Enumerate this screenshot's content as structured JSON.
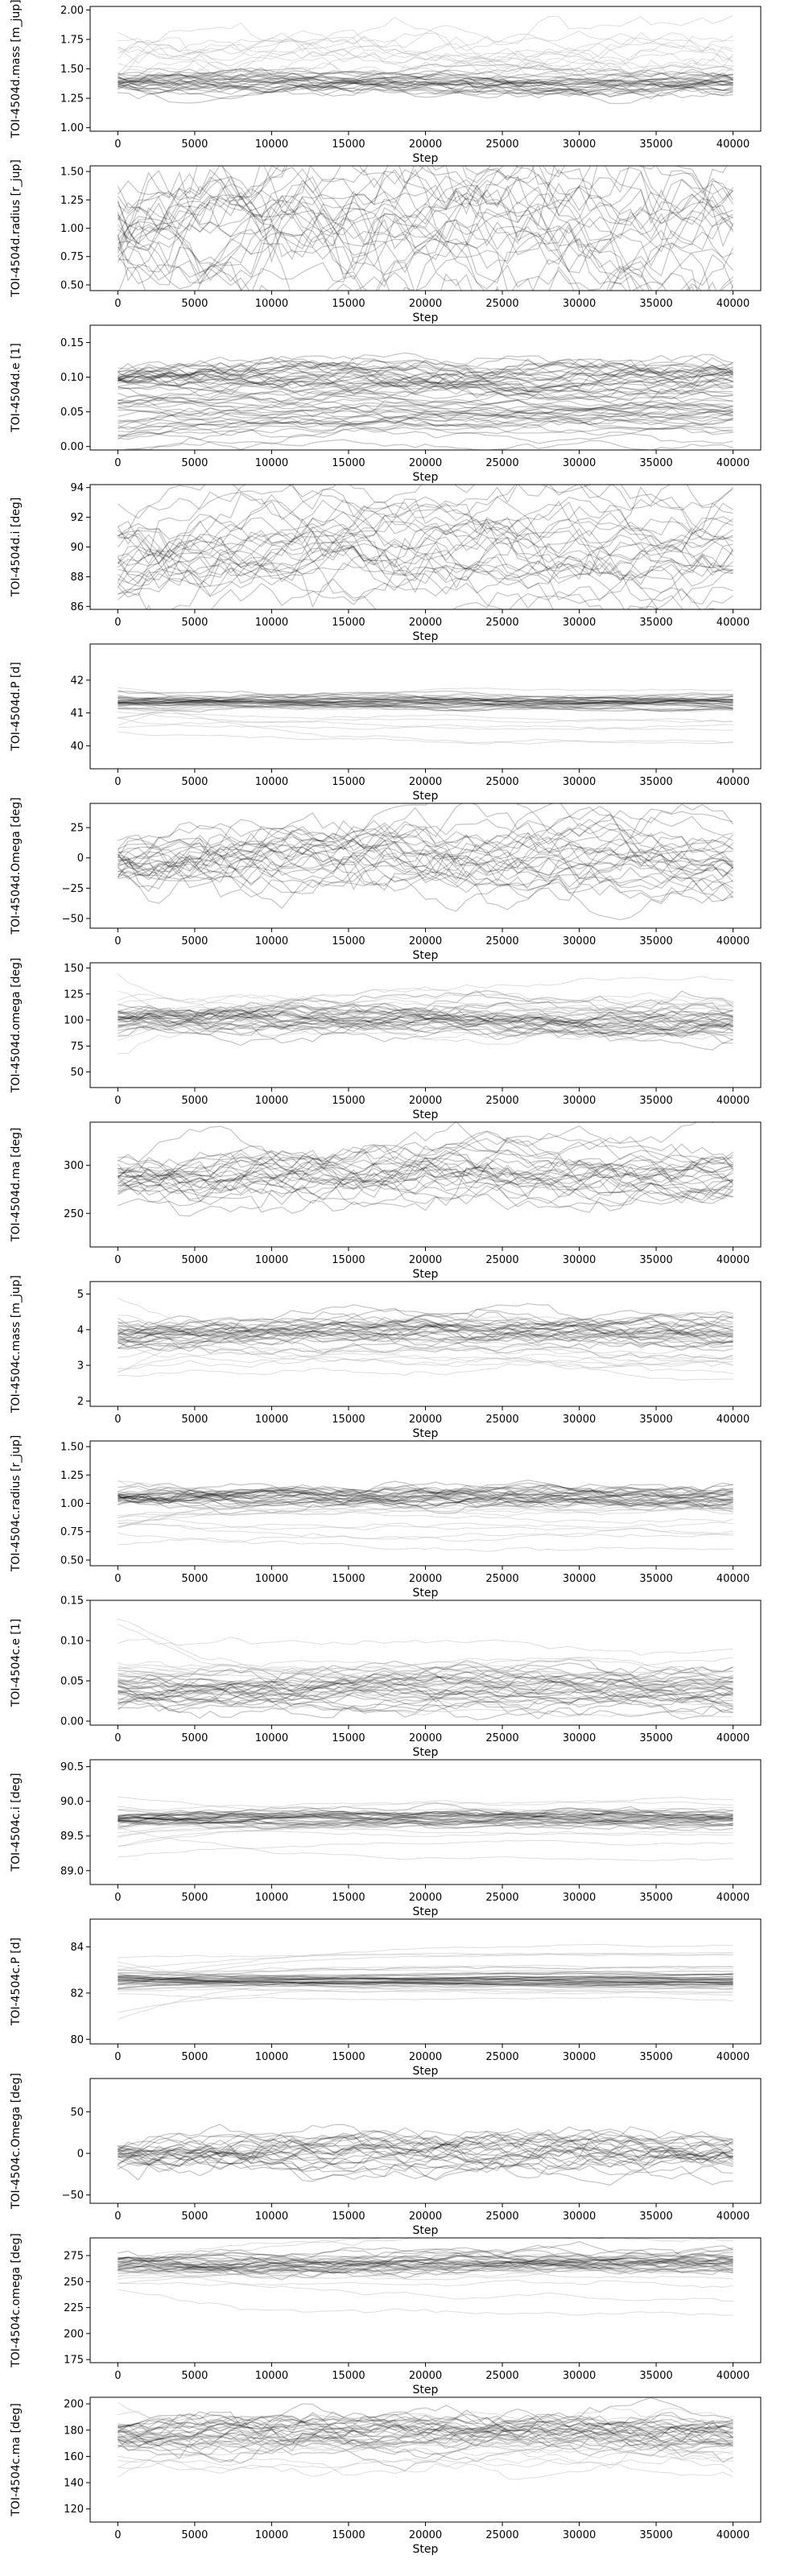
{
  "chart_data": [
    {
      "type": "line",
      "ylabel": "TOI-4504d.mass [m_jup]",
      "xlabel": "Step",
      "yticks": [
        1.0,
        1.25,
        1.5,
        1.75,
        2.0
      ],
      "ytick_labels": [
        "1.00",
        "1.25",
        "1.50",
        "1.75",
        "2.00"
      ],
      "ylim": [
        0.97,
        2.03
      ],
      "xlim": [
        -1800,
        41800
      ],
      "series": [
        {
          "center": 1.38,
          "spread": 0.06,
          "jitter": 0.02
        },
        {
          "center": 1.6,
          "spread": 0.25,
          "jitter": 0.04,
          "faint": true
        }
      ]
    },
    {
      "type": "line",
      "ylabel": "TOI-4504d.radius [r_jup]",
      "xlabel": "Step",
      "yticks": [
        0.5,
        0.75,
        1.0,
        1.25,
        1.5
      ],
      "ytick_labels": [
        "0.50",
        "0.75",
        "1.00",
        "1.25",
        "1.50"
      ],
      "ylim": [
        0.45,
        1.55
      ],
      "xlim": [
        -1800,
        41800
      ],
      "series": [
        {
          "center": 1.0,
          "spread": 0.45,
          "jitter": 0.12
        }
      ]
    },
    {
      "type": "line",
      "ylabel": "TOI-4504d.e [1]",
      "xlabel": "Step",
      "yticks": [
        0.0,
        0.05,
        0.1,
        0.15
      ],
      "ytick_labels": [
        "0.00",
        "0.05",
        "0.10",
        "0.15"
      ],
      "ylim": [
        -0.005,
        0.175
      ],
      "xlim": [
        -1800,
        41800
      ],
      "series": [
        {
          "center": 0.1,
          "spread": 0.01,
          "jitter": 0.005
        },
        {
          "center": 0.05,
          "spread": 0.04,
          "jitter": 0.003
        }
      ]
    },
    {
      "type": "line",
      "ylabel": "TOI-4504d.i [deg]",
      "xlabel": "Step",
      "yticks": [
        86,
        88,
        90,
        92,
        94
      ],
      "ytick_labels": [
        "86",
        "88",
        "90",
        "92",
        "94"
      ],
      "ylim": [
        85.8,
        94.2
      ],
      "xlim": [
        -1800,
        41800
      ],
      "series": [
        {
          "center": 89.5,
          "spread": 3.5,
          "jitter": 0.6
        }
      ]
    },
    {
      "type": "line",
      "ylabel": "TOI-4504d.P [d]",
      "xlabel": "Step",
      "yticks": [
        40,
        41,
        42
      ],
      "ytick_labels": [
        "40",
        "41",
        "42"
      ],
      "ylim": [
        39.3,
        43.1
      ],
      "xlim": [
        -1800,
        41800
      ],
      "series": [
        {
          "center": 41.3,
          "spread": 0.2,
          "jitter": 0.03
        },
        {
          "center": 41.0,
          "spread": 1.0,
          "jitter": 0.02,
          "faint": true
        }
      ]
    },
    {
      "type": "line",
      "ylabel": "TOI-4504d.Omega [deg]",
      "xlabel": "Step",
      "yticks": [
        -50,
        -25,
        0,
        25
      ],
      "ytick_labels": [
        "−50",
        "−25",
        "0",
        "25"
      ],
      "ylim": [
        -58,
        45
      ],
      "xlim": [
        -1800,
        41800
      ],
      "series": [
        {
          "center": 0,
          "spread": 15,
          "jitter": 6
        }
      ]
    },
    {
      "type": "line",
      "ylabel": "TOI-4504d.omega [deg]",
      "xlabel": "Step",
      "yticks": [
        50,
        75,
        100,
        125,
        150
      ],
      "ytick_labels": [
        "50",
        "75",
        "100",
        "125",
        "150"
      ],
      "ylim": [
        35,
        155
      ],
      "xlim": [
        -1800,
        41800
      ],
      "series": [
        {
          "center": 100,
          "spread": 10,
          "jitter": 3
        },
        {
          "center": 100,
          "spread": 30,
          "jitter": 2,
          "faint": true
        }
      ]
    },
    {
      "type": "line",
      "ylabel": "TOI-4504d.ma [deg]",
      "xlabel": "Step",
      "yticks": [
        250,
        300
      ],
      "ytick_labels": [
        "250",
        "300"
      ],
      "ylim": [
        215,
        345
      ],
      "xlim": [
        -1800,
        41800
      ],
      "series": [
        {
          "center": 290,
          "spread": 20,
          "jitter": 6
        }
      ]
    },
    {
      "type": "line",
      "ylabel": "TOI-4504c.mass [m_jup]",
      "xlabel": "Step",
      "yticks": [
        2,
        3,
        4,
        5
      ],
      "ytick_labels": [
        "2",
        "3",
        "4",
        "5"
      ],
      "ylim": [
        1.85,
        5.35
      ],
      "xlim": [
        -1800,
        41800
      ],
      "series": [
        {
          "center": 3.9,
          "spread": 0.4,
          "jitter": 0.08
        },
        {
          "center": 3.5,
          "spread": 1.2,
          "jitter": 0.05,
          "faint": true
        }
      ]
    },
    {
      "type": "line",
      "ylabel": "TOI-4504c.radius [r_jup]",
      "xlabel": "Step",
      "yticks": [
        0.5,
        0.75,
        1.0,
        1.25,
        1.5
      ],
      "ytick_labels": [
        "0.50",
        "0.75",
        "1.00",
        "1.25",
        "1.50"
      ],
      "ylim": [
        0.45,
        1.55
      ],
      "xlim": [
        -1800,
        41800
      ],
      "series": [
        {
          "center": 1.05,
          "spread": 0.05,
          "jitter": 0.02
        },
        {
          "center": 0.9,
          "spread": 0.3,
          "jitter": 0.01,
          "faint": true
        }
      ]
    },
    {
      "type": "line",
      "ylabel": "TOI-4504c.e [1]",
      "xlabel": "Step",
      "yticks": [
        0.0,
        0.05,
        0.1,
        0.15
      ],
      "ytick_labels": [
        "0.00",
        "0.05",
        "0.10",
        "0.15"
      ],
      "ylim": [
        -0.005,
        0.15
      ],
      "xlim": [
        -1800,
        41800
      ],
      "series": [
        {
          "center": 0.04,
          "spread": 0.02,
          "jitter": 0.004
        },
        {
          "center": 0.06,
          "spread": 0.05,
          "jitter": 0.002,
          "faint": true
        }
      ]
    },
    {
      "type": "line",
      "ylabel": "TOI-4504c.i [deg]",
      "xlabel": "Step",
      "yticks": [
        89.0,
        89.5,
        90.0,
        90.5
      ],
      "ytick_labels": [
        "89.0",
        "89.5",
        "90.0",
        "90.5"
      ],
      "ylim": [
        88.8,
        90.6
      ],
      "xlim": [
        -1800,
        41800
      ],
      "series": [
        {
          "center": 89.75,
          "spread": 0.08,
          "jitter": 0.02
        },
        {
          "center": 89.7,
          "spread": 0.5,
          "jitter": 0.01,
          "faint": true
        }
      ]
    },
    {
      "type": "line",
      "ylabel": "TOI-4504c.P [d]",
      "xlabel": "Step",
      "yticks": [
        80,
        82,
        84
      ],
      "ytick_labels": [
        "80",
        "82",
        "84"
      ],
      "ylim": [
        79.8,
        85.2
      ],
      "xlim": [
        -1800,
        41800
      ],
      "series": [
        {
          "center": 82.6,
          "spread": 0.4,
          "jitter": 0.02
        },
        {
          "center": 82.5,
          "spread": 1.8,
          "jitter": 0.02,
          "faint": true
        }
      ]
    },
    {
      "type": "line",
      "ylabel": "TOI-4504c.Omega [deg]",
      "xlabel": "Step",
      "yticks": [
        -50,
        0,
        50
      ],
      "ytick_labels": [
        "−50",
        "0",
        "50"
      ],
      "ylim": [
        -60,
        90
      ],
      "xlim": [
        -1800,
        41800
      ],
      "series": [
        {
          "center": 0,
          "spread": 10,
          "jitter": 5
        }
      ]
    },
    {
      "type": "line",
      "ylabel": "TOI-4504c.omega [deg]",
      "xlabel": "Step",
      "yticks": [
        175,
        200,
        225,
        250,
        275
      ],
      "ytick_labels": [
        "175",
        "200",
        "225",
        "250",
        "275"
      ],
      "ylim": [
        172,
        292
      ],
      "xlim": [
        -1800,
        41800
      ],
      "series": [
        {
          "center": 268,
          "spread": 7,
          "jitter": 2
        },
        {
          "center": 260,
          "spread": 30,
          "jitter": 1,
          "faint": true
        }
      ]
    },
    {
      "type": "line",
      "ylabel": "TOI-4504c.ma [deg]",
      "xlabel": "Step",
      "yticks": [
        120,
        140,
        160,
        180,
        200
      ],
      "ytick_labels": [
        "120",
        "140",
        "160",
        "180",
        "200"
      ],
      "ylim": [
        110,
        205
      ],
      "xlim": [
        -1800,
        41800
      ],
      "series": [
        {
          "center": 178,
          "spread": 8,
          "jitter": 3
        },
        {
          "center": 170,
          "spread": 25,
          "jitter": 2,
          "faint": true
        }
      ]
    }
  ],
  "x_axis": {
    "ticks": [
      0,
      5000,
      10000,
      15000,
      20000,
      25000,
      30000,
      35000,
      40000
    ],
    "tick_labels": [
      "0",
      "5000",
      "10000",
      "15000",
      "20000",
      "25000",
      "30000",
      "35000",
      "40000"
    ]
  }
}
